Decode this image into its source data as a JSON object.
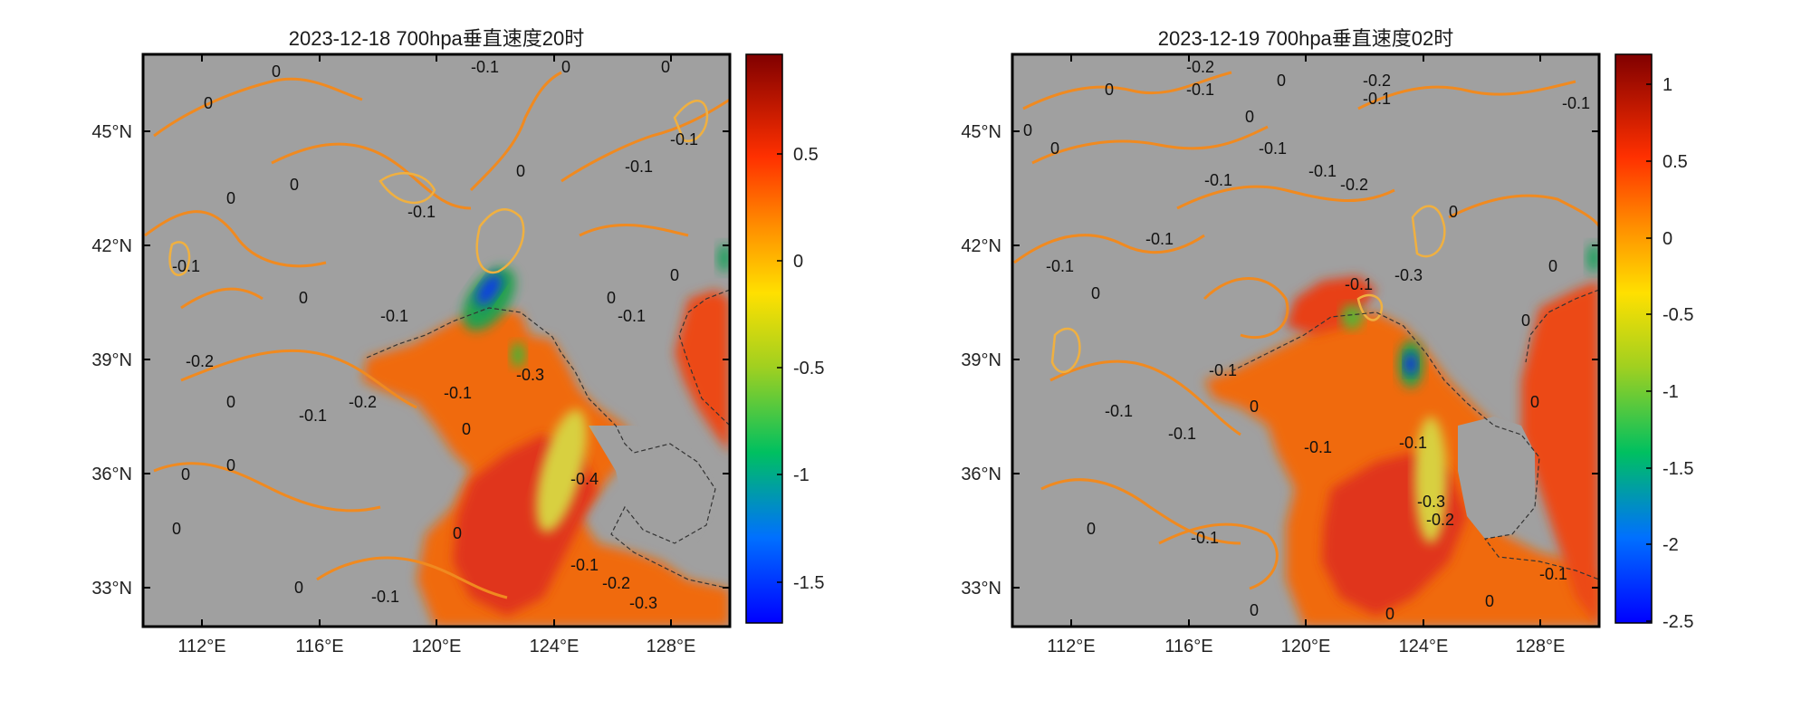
{
  "chart_data": [
    {
      "type": "heatmap",
      "title": "2023-12-18 700hpa垂直速度20时",
      "xlabel": "",
      "ylabel": "",
      "x_ticks": [
        "112°E",
        "116°E",
        "120°E",
        "124°E",
        "128°E"
      ],
      "y_ticks": [
        "45°N",
        "42°N",
        "39°N",
        "36°N",
        "33°N"
      ],
      "xlim": [
        110,
        130
      ],
      "ylim": [
        32,
        47
      ],
      "colorbar": {
        "ticks": [
          "0.5",
          "0",
          "-0.5",
          "-1",
          "-1.5"
        ],
        "range": [
          -1.7,
          0.95
        ]
      },
      "contour_labels": [
        "0",
        "-0.1",
        "-0.2",
        "-0.3",
        "-0.4"
      ],
      "grid": false,
      "masked_color": "#a0a0a0"
    },
    {
      "type": "heatmap",
      "title": "2023-12-19 700hpa垂直速度02时",
      "xlabel": "",
      "ylabel": "",
      "x_ticks": [
        "112°E",
        "116°E",
        "120°E",
        "124°E",
        "128°E"
      ],
      "y_ticks": [
        "45°N",
        "42°N",
        "39°N",
        "36°N",
        "33°N"
      ],
      "xlim": [
        110,
        130
      ],
      "ylim": [
        32,
        47
      ],
      "colorbar": {
        "ticks": [
          "1",
          "0.5",
          "0",
          "-0.5",
          "-1",
          "-1.5",
          "-2",
          "-2.5"
        ],
        "range": [
          -2.5,
          1.2
        ]
      },
      "contour_labels": [
        "0",
        "-0.1",
        "-0.2",
        "-0.3"
      ],
      "grid": false,
      "masked_color": "#a0a0a0"
    }
  ]
}
